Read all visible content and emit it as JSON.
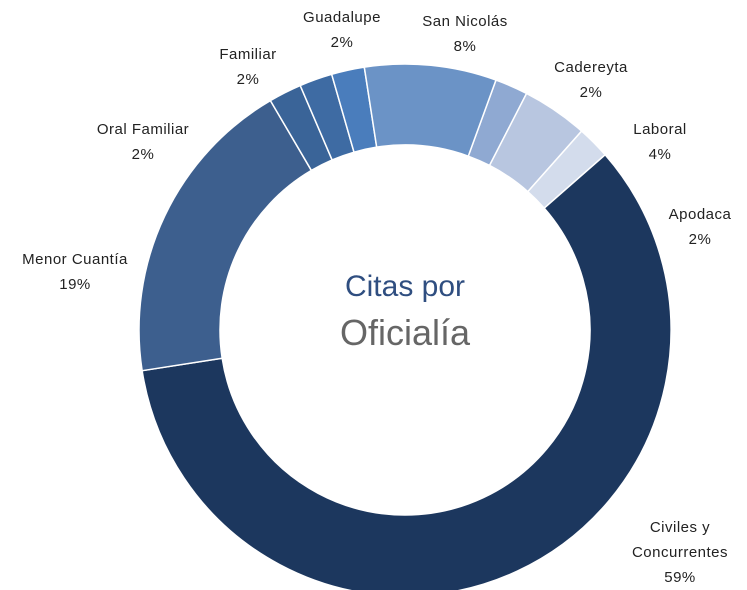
{
  "chart_data": {
    "type": "donut",
    "title": "Citas por",
    "subtitle": "Oficialía",
    "categories": [
      "Cadereyta",
      "Laboral",
      "Apodaca",
      "Civiles y Concurrentes",
      "Menor Cuantía",
      "Oral Familiar",
      "Familiar",
      "Guadalupe",
      "San Nicolás"
    ],
    "values": [
      2,
      4,
      2,
      59,
      19,
      2,
      2,
      2,
      8
    ],
    "value_labels": [
      "2%",
      "4%",
      "2%",
      "59%",
      "19%",
      "2%",
      "2%",
      "2%",
      "8%"
    ],
    "colors": [
      "#8fa9d2",
      "#b8c6e0",
      "#d3dcec",
      "#1c375e",
      "#3d5f8e",
      "#3a6498",
      "#3e6ba3",
      "#4a7dbc",
      "#6b93c6"
    ]
  }
}
